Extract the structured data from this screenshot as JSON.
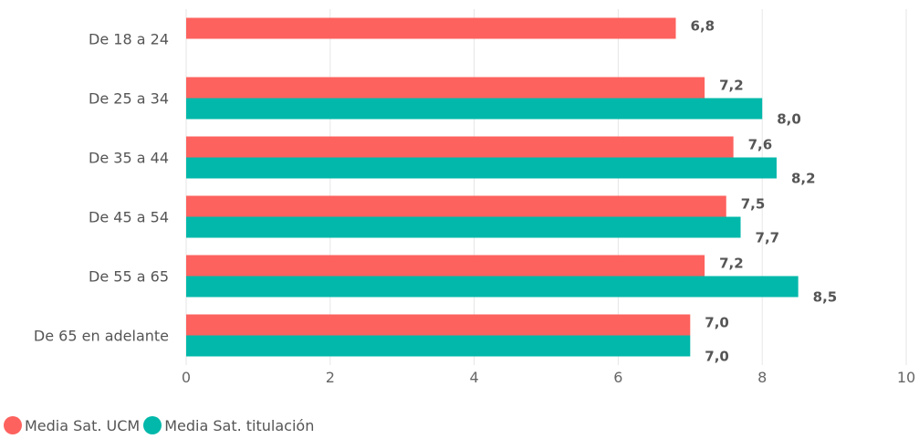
{
  "chart_data": {
    "type": "bar",
    "orientation": "horizontal",
    "categories": [
      "De 18 a 24",
      "De 25 a 34",
      "De 35 a 44",
      "De 45 a 54",
      "De 55 a 65",
      "De 65 en adelante"
    ],
    "series": [
      {
        "name": "Media Sat. UCM",
        "color": "#fd625e",
        "values": [
          6.8,
          7.2,
          7.6,
          7.5,
          7.2,
          7.0
        ],
        "labels": [
          "6,8",
          "7,2",
          "7,6",
          "7,5",
          "7,2",
          "7,0"
        ]
      },
      {
        "name": "Media Sat. titulación",
        "color": "#01b8aa",
        "values": [
          null,
          8.0,
          8.2,
          7.7,
          8.5,
          7.0
        ],
        "labels": [
          "",
          "8,0",
          "8,2",
          "7,7",
          "8,5",
          "7,0"
        ]
      }
    ],
    "xlim": [
      0,
      10
    ],
    "xticks": [
      "0",
      "2",
      "4",
      "6",
      "8",
      "10"
    ],
    "grid": true,
    "legend_position": "bottom-left"
  }
}
